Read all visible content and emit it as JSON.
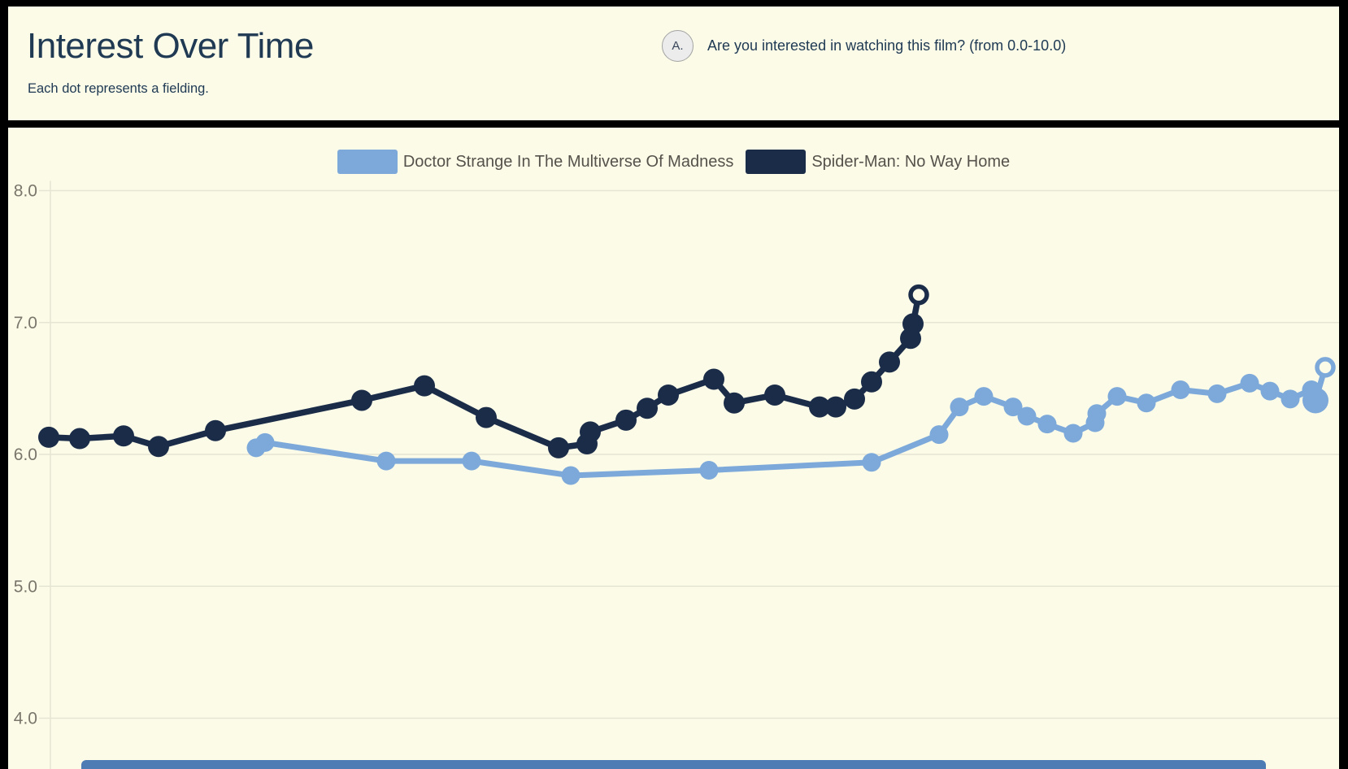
{
  "page": {
    "title": "Interest Over Time",
    "subtitle": "Each dot represents a fielding.",
    "question_badge": "A.",
    "question_text": "Are you interested in watching this film? (from 0.0-10.0)"
  },
  "colors": {
    "background": "#fbfbe8",
    "title_navy": "#203a54",
    "legend_text": "#56524b",
    "axis_text": "#7b766b",
    "gridline": "#e6e4d3",
    "divider": "#000000",
    "bottom_bar": "#4d7cb4",
    "badge_bg": "#ececec",
    "badge_border": "#a3a3a3"
  },
  "chart_data": {
    "type": "line",
    "title": "Interest Over Time",
    "subtitle": "Each dot represents a fielding.",
    "xlabel": "",
    "ylabel": "",
    "x_axis": "time (fielding dates, labels not visible in view)",
    "ylim_visible": [
      3.6,
      8.2
    ],
    "yticks": [
      8.0,
      7.0,
      6.0,
      5.0,
      4.0
    ],
    "ytick_labels": [
      "8.0",
      "7.0",
      "6.0",
      "5.0",
      "4.0"
    ],
    "grid": true,
    "legend_position": "top-center",
    "note": "x values are measured horizontal pixel positions (time axis); y values are interest scores 0-10; final point of each series is a hollow dot",
    "series": [
      {
        "name": "Doctor Strange In The Multiverse Of Madness",
        "color": "#7da9da",
        "line_width": 7,
        "dot_radius": 11.5,
        "hollow_last": true,
        "points": [
          [
            315,
            6.05
          ],
          [
            326,
            6.09
          ],
          [
            475,
            5.95
          ],
          [
            580,
            5.95
          ],
          [
            702,
            5.84
          ],
          [
            872,
            5.88
          ],
          [
            1072,
            5.94
          ],
          [
            1155,
            6.15
          ],
          [
            1180,
            6.36
          ],
          [
            1210,
            6.44
          ],
          [
            1246,
            6.36
          ],
          [
            1263,
            6.29
          ],
          [
            1288,
            6.23
          ],
          [
            1320,
            6.16
          ],
          [
            1347,
            6.24
          ],
          [
            1349,
            6.31
          ],
          [
            1374,
            6.44
          ],
          [
            1410,
            6.39
          ],
          [
            1452,
            6.49
          ],
          [
            1497,
            6.46
          ],
          [
            1537,
            6.54
          ],
          [
            1562,
            6.48
          ],
          [
            1587,
            6.42
          ],
          [
            1613,
            6.49
          ],
          [
            1618,
            6.41,
            16
          ],
          [
            1630,
            6.66
          ]
        ]
      },
      {
        "name": "Spider-Man: No Way Home",
        "color": "#1b2c49",
        "line_width": 7.5,
        "dot_radius": 13,
        "hollow_last": true,
        "points": [
          [
            60,
            6.13
          ],
          [
            98,
            6.12
          ],
          [
            152,
            6.14
          ],
          [
            195,
            6.06
          ],
          [
            265,
            6.18
          ],
          [
            445,
            6.41
          ],
          [
            522,
            6.52
          ],
          [
            598,
            6.28
          ],
          [
            687,
            6.05
          ],
          [
            722,
            6.08
          ],
          [
            726,
            6.17
          ],
          [
            770,
            6.26
          ],
          [
            796,
            6.35
          ],
          [
            822,
            6.45
          ],
          [
            878,
            6.57
          ],
          [
            903,
            6.39
          ],
          [
            953,
            6.45
          ],
          [
            1008,
            6.36
          ],
          [
            1028,
            6.36
          ],
          [
            1051,
            6.42
          ],
          [
            1072,
            6.55
          ],
          [
            1094,
            6.7
          ],
          [
            1120,
            6.88
          ],
          [
            1123,
            6.99
          ],
          [
            1130,
            7.21
          ]
        ]
      }
    ]
  }
}
